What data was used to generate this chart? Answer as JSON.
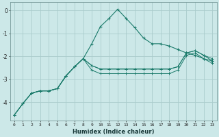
{
  "background_color": "#cce8e8",
  "grid_color": "#aacccc",
  "line_color": "#1a7a6a",
  "xlabel": "Humidex (Indice chaleur)",
  "xlim": [
    -0.5,
    23.5
  ],
  "ylim": [
    -4.8,
    0.35
  ],
  "x_ticks": [
    0,
    1,
    2,
    3,
    4,
    5,
    6,
    7,
    8,
    9,
    10,
    11,
    12,
    13,
    14,
    15,
    16,
    17,
    18,
    19,
    20,
    21,
    22,
    23
  ],
  "y_ticks": [
    0,
    -1,
    -2,
    -3,
    -4
  ],
  "series": [
    {
      "x": [
        0,
        1,
        2,
        3,
        4,
        5,
        6,
        7,
        8,
        9,
        10,
        11,
        12,
        13,
        14,
        15,
        16,
        17,
        18,
        19,
        20,
        21,
        22,
        23
      ],
      "y": [
        -4.55,
        -4.05,
        -3.6,
        -3.5,
        -3.5,
        -3.4,
        -2.85,
        -2.45,
        -2.1,
        -1.45,
        -0.7,
        -0.35,
        0.05,
        -0.35,
        -0.75,
        -1.2,
        -1.45,
        -1.45,
        -1.55,
        -1.7,
        -1.85,
        -1.95,
        -2.1,
        -2.2
      ]
    },
    {
      "x": [
        2,
        3,
        4,
        5,
        6,
        7,
        8,
        9,
        10,
        11,
        12,
        13,
        14,
        15,
        16,
        17,
        18,
        19,
        20,
        21,
        22,
        23
      ],
      "y": [
        -3.6,
        -3.5,
        -3.5,
        -3.4,
        -2.85,
        -2.45,
        -2.1,
        -2.4,
        -2.55,
        -2.55,
        -2.55,
        -2.55,
        -2.55,
        -2.55,
        -2.55,
        -2.55,
        -2.55,
        -2.45,
        -1.85,
        -1.75,
        -1.95,
        -2.1
      ]
    },
    {
      "x": [
        0,
        1,
        2,
        3,
        4,
        5,
        6,
        7,
        8,
        9,
        10,
        11,
        12,
        13,
        14,
        15,
        16,
        17,
        18,
        19,
        20,
        21,
        22,
        23
      ],
      "y": [
        -4.55,
        -4.05,
        -3.6,
        -3.5,
        -3.5,
        -3.4,
        -2.85,
        -2.45,
        -2.1,
        -2.4,
        -2.55,
        -2.55,
        -2.55,
        -2.55,
        -2.55,
        -2.55,
        -2.55,
        -2.55,
        -2.55,
        -2.45,
        -1.85,
        -1.75,
        -1.95,
        -2.2
      ]
    },
    {
      "x": [
        0,
        1,
        2,
        3,
        4,
        5,
        6,
        7,
        8,
        9,
        10,
        11,
        12,
        13,
        14,
        15,
        16,
        17,
        18,
        19,
        20,
        21,
        22,
        23
      ],
      "y": [
        -4.55,
        -4.05,
        -3.6,
        -3.5,
        -3.5,
        -3.4,
        -2.85,
        -2.45,
        -2.1,
        -2.6,
        -2.75,
        -2.75,
        -2.75,
        -2.75,
        -2.75,
        -2.75,
        -2.75,
        -2.75,
        -2.75,
        -2.6,
        -1.95,
        -1.85,
        -2.1,
        -2.3
      ]
    }
  ]
}
